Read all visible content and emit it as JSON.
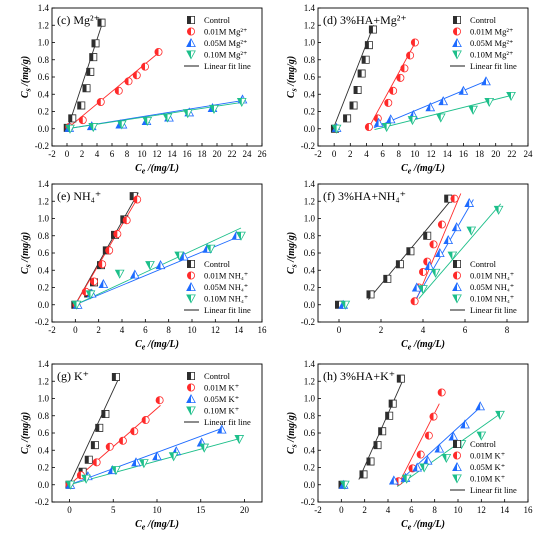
{
  "figure": {
    "background": "#ffffff"
  },
  "series_styles": [
    {
      "key": "control",
      "marker": "half-square",
      "color": "#2e2e2e"
    },
    {
      "key": "mg001",
      "marker": "half-circle",
      "color": "#ff2a2a"
    },
    {
      "key": "mg005",
      "marker": "half-triangle-up",
      "color": "#1e6bff"
    },
    {
      "key": "mg010",
      "marker": "half-triangle-down",
      "color": "#1dbf8a"
    }
  ],
  "chart_data": [
    {
      "type": "scatter",
      "panel_label": "(c) Mg²⁺",
      "xlabel": "Ce /(mg/L)",
      "ylabel": "Cs /(mg/g)",
      "xlim": [
        -2,
        26
      ],
      "ylim": [
        -0.2,
        1.4
      ],
      "xticks": [
        -2,
        0,
        2,
        4,
        6,
        8,
        10,
        12,
        14,
        16,
        18,
        20,
        22,
        24,
        26
      ],
      "yticks": [
        -0.2,
        0.0,
        0.2,
        0.4,
        0.6,
        0.8,
        1.0,
        1.2,
        1.4
      ],
      "legend_position": "top-right",
      "legend": [
        "Control",
        "0.01M Mg²⁺",
        "0.05M Mg²⁺",
        "0.10M Mg²⁺",
        "Linear fit line"
      ],
      "series": [
        {
          "name": "Control",
          "style": 0,
          "x": [
            0.1,
            0.7,
            1.9,
            2.6,
            3.1,
            3.5,
            3.8,
            4.6
          ],
          "y": [
            0.01,
            0.12,
            0.27,
            0.47,
            0.66,
            0.83,
            0.99,
            1.23
          ],
          "fit": [
            [
              0,
              -0.02
            ],
            [
              4.7,
              1.22
            ]
          ]
        },
        {
          "name": "0.01M Mg²⁺",
          "style": 1,
          "x": [
            0.3,
            2.1,
            4.5,
            6.9,
            8.2,
            9.3,
            10.4,
            12.2
          ],
          "y": [
            0.02,
            0.1,
            0.31,
            0.44,
            0.55,
            0.62,
            0.72,
            0.89
          ],
          "fit": [
            [
              0,
              0.0
            ],
            [
              12.2,
              0.88
            ]
          ]
        },
        {
          "name": "0.05M Mg²⁺",
          "style": 2,
          "x": [
            0.3,
            3.3,
            7.1,
            7.4,
            10.6,
            13.6,
            16.3,
            19.4,
            23.4
          ],
          "y": [
            0.01,
            0.03,
            0.05,
            0.05,
            0.09,
            0.13,
            0.19,
            0.24,
            0.34
          ],
          "fit": [
            [
              0,
              0.0
            ],
            [
              23.6,
              0.33
            ]
          ]
        },
        {
          "name": "0.10M Mg²⁺",
          "style": 3,
          "x": [
            0.4,
            3.5,
            7.3,
            10.7,
            13.4,
            16.1,
            19.6,
            23.3
          ],
          "y": [
            0.0,
            0.02,
            0.05,
            0.09,
            0.13,
            0.18,
            0.23,
            0.31
          ],
          "fit": [
            [
              0,
              0.0
            ],
            [
              23.6,
              0.31
            ]
          ]
        }
      ]
    },
    {
      "type": "scatter",
      "panel_label": "(d) 3%HA+Mg²⁺",
      "xlabel": "Ce /(mg/L)",
      "ylabel": "Cs /(mg/g)",
      "xlim": [
        -2,
        24
      ],
      "ylim": [
        -0.2,
        1.4
      ],
      "xticks": [
        -2,
        0,
        2,
        4,
        6,
        8,
        10,
        12,
        14,
        16,
        18,
        20,
        22,
        24
      ],
      "yticks": [
        -0.2,
        0.0,
        0.2,
        0.4,
        0.6,
        0.8,
        1.0,
        1.2,
        1.4
      ],
      "legend_position": "top-right",
      "legend": [
        "Control",
        "0.01M Mg²⁺",
        "0.05M Mg²⁺",
        "0.10M Mg²⁺",
        "Linear fit line"
      ],
      "series": [
        {
          "name": "Control",
          "style": 0,
          "x": [
            0.1,
            1.6,
            2.4,
            2.9,
            3.4,
            3.9,
            4.3,
            4.8
          ],
          "y": [
            0.0,
            0.12,
            0.27,
            0.45,
            0.64,
            0.8,
            0.97,
            1.15
          ],
          "fit": [
            [
              -0.2,
              -0.02
            ],
            [
              4.9,
              1.2
            ]
          ]
        },
        {
          "name": "0.01M Mg²⁺",
          "style": 1,
          "x": [
            4.3,
            5.4,
            6.7,
            7.3,
            8.2,
            8.7,
            9.4,
            10.0
          ],
          "y": [
            0.02,
            0.12,
            0.3,
            0.44,
            0.59,
            0.7,
            0.85,
            1.0
          ],
          "fit": [
            [
              4.1,
              -0.02
            ],
            [
              10.1,
              1.01
            ]
          ]
        },
        {
          "name": "0.05M Mg²⁺",
          "style": 2,
          "x": [
            0.3,
            5.5,
            7.0,
            9.8,
            11.9,
            13.5,
            16.0,
            18.8
          ],
          "y": [
            0.01,
            0.07,
            0.11,
            0.16,
            0.25,
            0.32,
            0.44,
            0.55
          ],
          "fit": [
            [
              4.9,
              0.01
            ],
            [
              19.0,
              0.56
            ]
          ]
        },
        {
          "name": "0.10M Mg²⁺",
          "style": 3,
          "x": [
            0.3,
            6.5,
            9.7,
            13.2,
            17.2,
            19.2,
            21.9
          ],
          "y": [
            0.0,
            0.02,
            0.1,
            0.13,
            0.22,
            0.31,
            0.38
          ],
          "fit": [
            [
              5.0,
              -0.01
            ],
            [
              22.1,
              0.39
            ]
          ]
        }
      ]
    },
    {
      "type": "scatter",
      "panel_label": "(e) NH₄⁺",
      "xlabel": "Ce /(mg/L)",
      "ylabel": "Cs /(mg/g)",
      "xlim": [
        -2,
        16
      ],
      "ylim": [
        -0.2,
        1.4
      ],
      "xticks": [
        -2,
        0,
        2,
        4,
        6,
        8,
        10,
        12,
        14,
        16
      ],
      "yticks": [
        -0.2,
        0.0,
        0.2,
        0.4,
        0.6,
        0.8,
        1.0,
        1.2,
        1.4
      ],
      "legend_position": "bottom-right",
      "legend": [
        "Control",
        "0.01M NH₄⁺",
        "0.05M NH₄⁺",
        "0.10M NH₄⁺",
        "Linear fit line"
      ],
      "series": [
        {
          "name": "Control",
          "style": 0,
          "x": [
            0.0,
            1.1,
            1.6,
            2.2,
            2.7,
            3.4,
            4.2,
            5.0
          ],
          "y": [
            0.0,
            0.13,
            0.26,
            0.46,
            0.63,
            0.81,
            0.99,
            1.26
          ],
          "fit": [
            [
              -0.1,
              -0.02
            ],
            [
              5.4,
              1.3
            ]
          ]
        },
        {
          "name": "0.01M NH₄⁺",
          "style": 1,
          "x": [
            0.1,
            0.9,
            1.6,
            2.3,
            2.9,
            3.6,
            4.4,
            5.3
          ],
          "y": [
            0.0,
            0.15,
            0.27,
            0.47,
            0.63,
            0.82,
            0.98,
            1.22
          ],
          "fit": [
            [
              -0.1,
              -0.02
            ],
            [
              5.4,
              1.25
            ]
          ]
        },
        {
          "name": "0.05M NH₄⁺",
          "style": 2,
          "x": [
            0.2,
            1.4,
            2.4,
            5.1,
            7.3,
            9.3,
            11.3,
            13.8
          ],
          "y": [
            0.0,
            0.13,
            0.24,
            0.35,
            0.46,
            0.56,
            0.65,
            0.8
          ],
          "fit": [
            [
              0,
              0.0
            ],
            [
              14.2,
              0.8
            ]
          ]
        },
        {
          "name": "0.10M NH₄⁺",
          "style": 3,
          "x": [
            0.1,
            1.3,
            3.8,
            6.4,
            8.9,
            11.6,
            14.2
          ],
          "y": [
            0.0,
            0.12,
            0.36,
            0.46,
            0.57,
            0.65,
            0.8
          ],
          "fit": [
            [
              0,
              0.0
            ],
            [
              14.2,
              0.89
            ]
          ]
        }
      ]
    },
    {
      "type": "scatter",
      "panel_label": "(f) 3%HA+NH₄⁺",
      "xlabel": "Ce /(mg/L)",
      "ylabel": "Cs /(mg/g)",
      "xlim": [
        -1,
        9
      ],
      "ylim": [
        -0.2,
        1.4
      ],
      "xticks": [
        0,
        2,
        4,
        6,
        8
      ],
      "yticks": [
        -0.2,
        0.0,
        0.2,
        0.4,
        0.6,
        0.8,
        1.0,
        1.2,
        1.4
      ],
      "legend_position": "bottom-right",
      "legend": [
        "Control",
        "0.01M NH₄⁺",
        "0.05M NH₄⁺",
        "0.10M NH₄⁺",
        "Linear fit line"
      ],
      "series": [
        {
          "name": "Control",
          "style": 0,
          "x": [
            0.0,
            1.5,
            2.3,
            2.9,
            3.4,
            4.2,
            5.2
          ],
          "y": [
            0.0,
            0.12,
            0.3,
            0.47,
            0.62,
            0.8,
            1.23
          ],
          "fit": [
            [
              1.4,
              0.06
            ],
            [
              5.5,
              1.26
            ]
          ]
        },
        {
          "name": "0.01M NH₄⁺",
          "style": 1,
          "x": [
            3.6,
            3.8,
            4.0,
            4.2,
            4.5,
            4.9,
            5.5
          ],
          "y": [
            0.04,
            0.2,
            0.38,
            0.5,
            0.7,
            0.93,
            1.23
          ],
          "fit": [
            [
              3.6,
              0.01
            ],
            [
              5.8,
              1.29
            ]
          ]
        },
        {
          "name": "0.05M NH₄⁺",
          "style": 2,
          "x": [
            0.2,
            3.7,
            4.3,
            4.8,
            5.2,
            5.6,
            6.2
          ],
          "y": [
            0.0,
            0.2,
            0.45,
            0.6,
            0.75,
            0.9,
            1.18
          ],
          "fit": [
            [
              3.6,
              0.04
            ],
            [
              6.4,
              1.22
            ]
          ]
        },
        {
          "name": "0.10M NH₄⁺",
          "style": 3,
          "x": [
            0.3,
            4.0,
            4.6,
            5.4,
            6.3,
            7.6
          ],
          "y": [
            0.0,
            0.18,
            0.37,
            0.57,
            0.86,
            1.1
          ],
          "fit": [
            [
              3.8,
              0.07
            ],
            [
              7.7,
              1.17
            ]
          ]
        }
      ]
    },
    {
      "type": "scatter",
      "panel_label": "(g) K⁺",
      "xlabel": "Ce /(mg/L)",
      "ylabel": "Cs /(mg/g)",
      "xlim": [
        -2,
        22
      ],
      "ylim": [
        -0.2,
        1.4
      ],
      "xticks": [
        0,
        5,
        10,
        15,
        20
      ],
      "yticks": [
        -0.2,
        0.0,
        0.2,
        0.4,
        0.6,
        0.8,
        1.0,
        1.2,
        1.4
      ],
      "legend_position": "top-right",
      "legend": [
        "Control",
        "0.01M K⁺",
        "0.05M K⁺",
        "0.10M K⁺",
        "Linear fit line"
      ],
      "series": [
        {
          "name": "Control",
          "style": 0,
          "x": [
            0.0,
            1.5,
            2.2,
            2.9,
            3.4,
            4.1,
            5.3
          ],
          "y": [
            0.0,
            0.15,
            0.29,
            0.46,
            0.66,
            0.82,
            1.25
          ],
          "fit": [
            [
              -0.1,
              -0.02
            ],
            [
              5.7,
              1.25
            ]
          ]
        },
        {
          "name": "0.01M K⁺",
          "style": 1,
          "x": [
            0.0,
            1.3,
            3.1,
            4.6,
            6.1,
            7.4,
            8.7,
            10.3
          ],
          "y": [
            0.0,
            0.11,
            0.26,
            0.44,
            0.51,
            0.62,
            0.75,
            0.98
          ],
          "fit": [
            [
              0,
              0.0
            ],
            [
              10.4,
              0.92
            ]
          ]
        },
        {
          "name": "0.05M K⁺",
          "style": 2,
          "x": [
            0.1,
            2.1,
            4.9,
            7.6,
            10.0,
            12.2,
            15.1,
            17.4
          ],
          "y": [
            0.0,
            0.1,
            0.17,
            0.26,
            0.33,
            0.39,
            0.49,
            0.64
          ],
          "fit": [
            [
              0,
              0.0
            ],
            [
              17.6,
              0.66
            ]
          ]
        },
        {
          "name": "0.10M K⁺",
          "style": 3,
          "x": [
            0.1,
            1.9,
            5.3,
            8.5,
            11.9,
            15.4,
            19.4
          ],
          "y": [
            0.0,
            0.07,
            0.17,
            0.25,
            0.33,
            0.43,
            0.53
          ],
          "fit": [
            [
              0,
              0.0
            ],
            [
              19.6,
              0.54
            ]
          ]
        }
      ]
    },
    {
      "type": "scatter",
      "panel_label": "(h) 3%HA+K⁺",
      "xlabel": "Ce /(mg/L)",
      "ylabel": "Cs /(mg/g)",
      "xlim": [
        -2,
        16
      ],
      "ylim": [
        -0.2,
        1.4
      ],
      "xticks": [
        -2,
        0,
        2,
        4,
        6,
        8,
        10,
        12,
        14,
        16
      ],
      "yticks": [
        -0.2,
        0.0,
        0.2,
        0.4,
        0.6,
        0.8,
        1.0,
        1.2,
        1.4
      ],
      "legend_position": "bottom-right",
      "legend": [
        "Control",
        "0.01M K⁺",
        "0.05M K⁺",
        "0.10M K⁺",
        "Linear fit line"
      ],
      "series": [
        {
          "name": "Control",
          "style": 0,
          "x": [
            0.1,
            1.9,
            2.5,
            3.1,
            3.5,
            4.1,
            4.4,
            5.1
          ],
          "y": [
            0.0,
            0.12,
            0.27,
            0.46,
            0.62,
            0.8,
            0.94,
            1.23
          ],
          "fit": [
            [
              1.5,
              0.06
            ],
            [
              5.4,
              1.25
            ]
          ]
        },
        {
          "name": "0.01M K⁺",
          "style": 1,
          "x": [
            4.9,
            6.1,
            6.8,
            7.5,
            7.9,
            8.6
          ],
          "y": [
            0.04,
            0.19,
            0.35,
            0.57,
            0.79,
            1.07
          ],
          "fit": [
            [
              4.8,
              -0.02
            ],
            [
              8.4,
              0.94
            ]
          ]
        },
        {
          "name": "0.05M K⁺",
          "style": 2,
          "x": [
            0.2,
            4.5,
            5.5,
            6.5,
            7.4,
            8.4,
            9.6,
            10.6,
            11.9
          ],
          "y": [
            0.0,
            0.05,
            0.08,
            0.2,
            0.28,
            0.42,
            0.56,
            0.7,
            0.91
          ],
          "fit": [
            [
              4.8,
              0.02
            ],
            [
              12.0,
              0.91
            ]
          ]
        },
        {
          "name": "0.10M K⁺",
          "style": 3,
          "x": [
            0.3,
            5.6,
            7.1,
            9.0,
            10.3,
            12.0,
            13.6
          ],
          "y": [
            0.0,
            0.07,
            0.2,
            0.31,
            0.47,
            0.57,
            0.81
          ],
          "fit": [
            [
              4.8,
              -0.02
            ],
            [
              13.8,
              0.84
            ]
          ]
        }
      ]
    }
  ]
}
